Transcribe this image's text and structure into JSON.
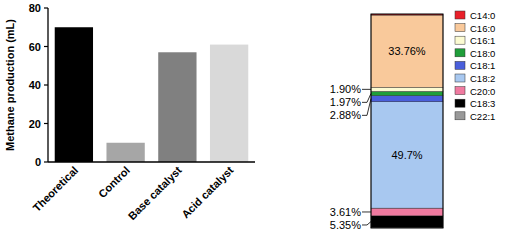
{
  "chart_data": [
    {
      "type": "bar",
      "y_label": "Methane production (mL)",
      "categories": [
        "Theoretical",
        "Control",
        "Base catalyst",
        "Acid catalyst"
      ],
      "values": [
        70,
        10,
        57,
        61
      ],
      "colors": [
        "#000000",
        "#a6a6a6",
        "#808080",
        "#d9d9d9"
      ],
      "ylim": [
        0,
        80
      ],
      "yticks": [
        0,
        20,
        40,
        60,
        80
      ]
    },
    {
      "type": "bar",
      "stacked": true,
      "data_labels": true,
      "tick_labels": false,
      "legend": "right",
      "categories": [
        null
      ],
      "ylim": [
        0,
        100
      ],
      "series": [
        {
          "name": "C14:0",
          "color": "#e8202a",
          "values": [
            0.5
          ],
          "value_labels": [
            null
          ]
        },
        {
          "name": "C16:0",
          "color": "#f9c99b",
          "values": [
            33.76
          ],
          "value_labels": [
            "33.76%"
          ]
        },
        {
          "name": "C16:1",
          "color": "#fcfbd2",
          "values": [
            1.9
          ],
          "value_labels": [
            "1.90%"
          ]
        },
        {
          "name": "C18:0",
          "color": "#1f9e3a",
          "values": [
            1.97
          ],
          "value_labels": [
            "1.97%"
          ]
        },
        {
          "name": "C18:1",
          "color": "#4a5fdb",
          "values": [
            2.88
          ],
          "value_labels": [
            "2.88%"
          ]
        },
        {
          "name": "C18:2",
          "color": "#a8c8f0",
          "values": [
            49.7
          ],
          "value_labels": [
            "49.7%"
          ]
        },
        {
          "name": "C20:0",
          "color": "#f07aa0",
          "values": [
            3.61
          ],
          "value_labels": [
            "3.61%"
          ]
        },
        {
          "name": "C18:3",
          "color": "#000000",
          "values": [
            5.35
          ],
          "value_labels": [
            "5.35%"
          ]
        },
        {
          "name": "C22:1",
          "color": "#999999",
          "values": [
            0.33
          ],
          "value_labels": [
            null
          ]
        }
      ]
    }
  ]
}
